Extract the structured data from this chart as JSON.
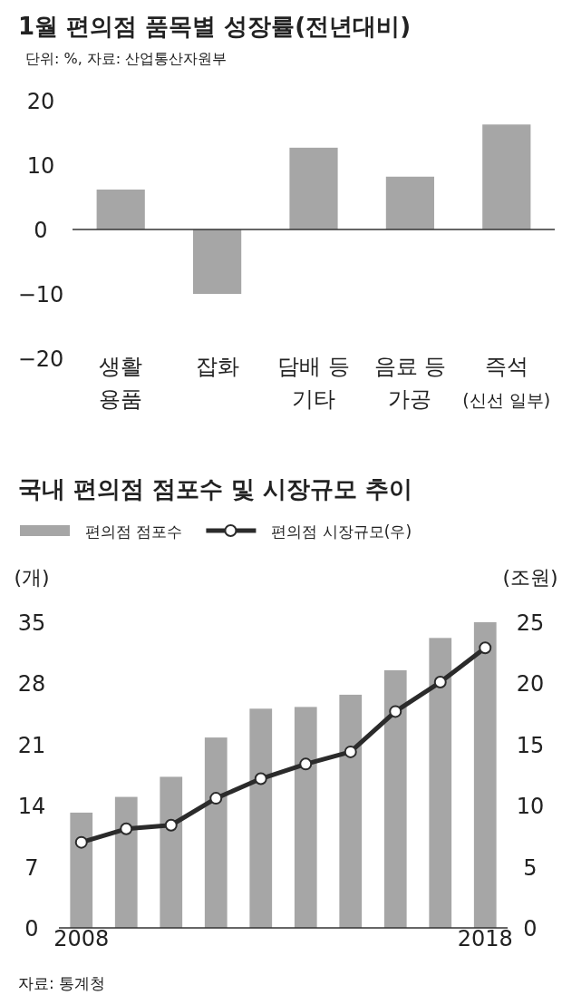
{
  "chart_data": [
    {
      "type": "bar",
      "title": "1월 편의점 품목별 성장률(전년대비)",
      "subtitle": "단위: %, 자료: 산업통산자원부",
      "categories": [
        "생활\n용품",
        "잡화",
        "담배 등\n기타",
        "음료 등\n가공",
        "즉석\n(신선 일부)"
      ],
      "values": [
        6.2,
        -10.0,
        12.7,
        8.2,
        16.3
      ],
      "color": "#a6a6a6",
      "ylim": [
        -20,
        20
      ],
      "yticks": [
        -20,
        -10,
        0,
        10,
        20
      ]
    },
    {
      "type": "bar",
      "title": "국내 편의점 점포수 및 시장규모 추이",
      "categories": [
        "2008",
        null,
        null,
        null,
        null,
        null,
        null,
        null,
        null,
        "2018"
      ],
      "ylabel": "(개)",
      "y2label": "(조원)",
      "legend": "top left",
      "ylim": [
        0,
        35
      ],
      "yticks": [
        0,
        7,
        14,
        21,
        28,
        35
      ],
      "y2lim": [
        0,
        25
      ],
      "y2ticks": [
        0,
        5,
        10,
        15,
        20,
        25
      ],
      "series": [
        {
          "name": "편의점 점포수",
          "type": "bar",
          "color": "#a6a6a6",
          "values": [
            13.2,
            15.0,
            17.3,
            21.8,
            25.1,
            25.3,
            26.7,
            29.5,
            33.2,
            35.0
          ]
        },
        {
          "name": "편의점 시장규모(우)",
          "type": "line",
          "axis": "y2",
          "marker": "circle",
          "color": "#2b2b2b",
          "values": [
            7.0,
            8.1,
            8.4,
            10.6,
            12.2,
            13.4,
            14.4,
            17.7,
            20.1,
            22.9
          ]
        }
      ],
      "annotations": [
        "자료: 통계청"
      ]
    }
  ]
}
